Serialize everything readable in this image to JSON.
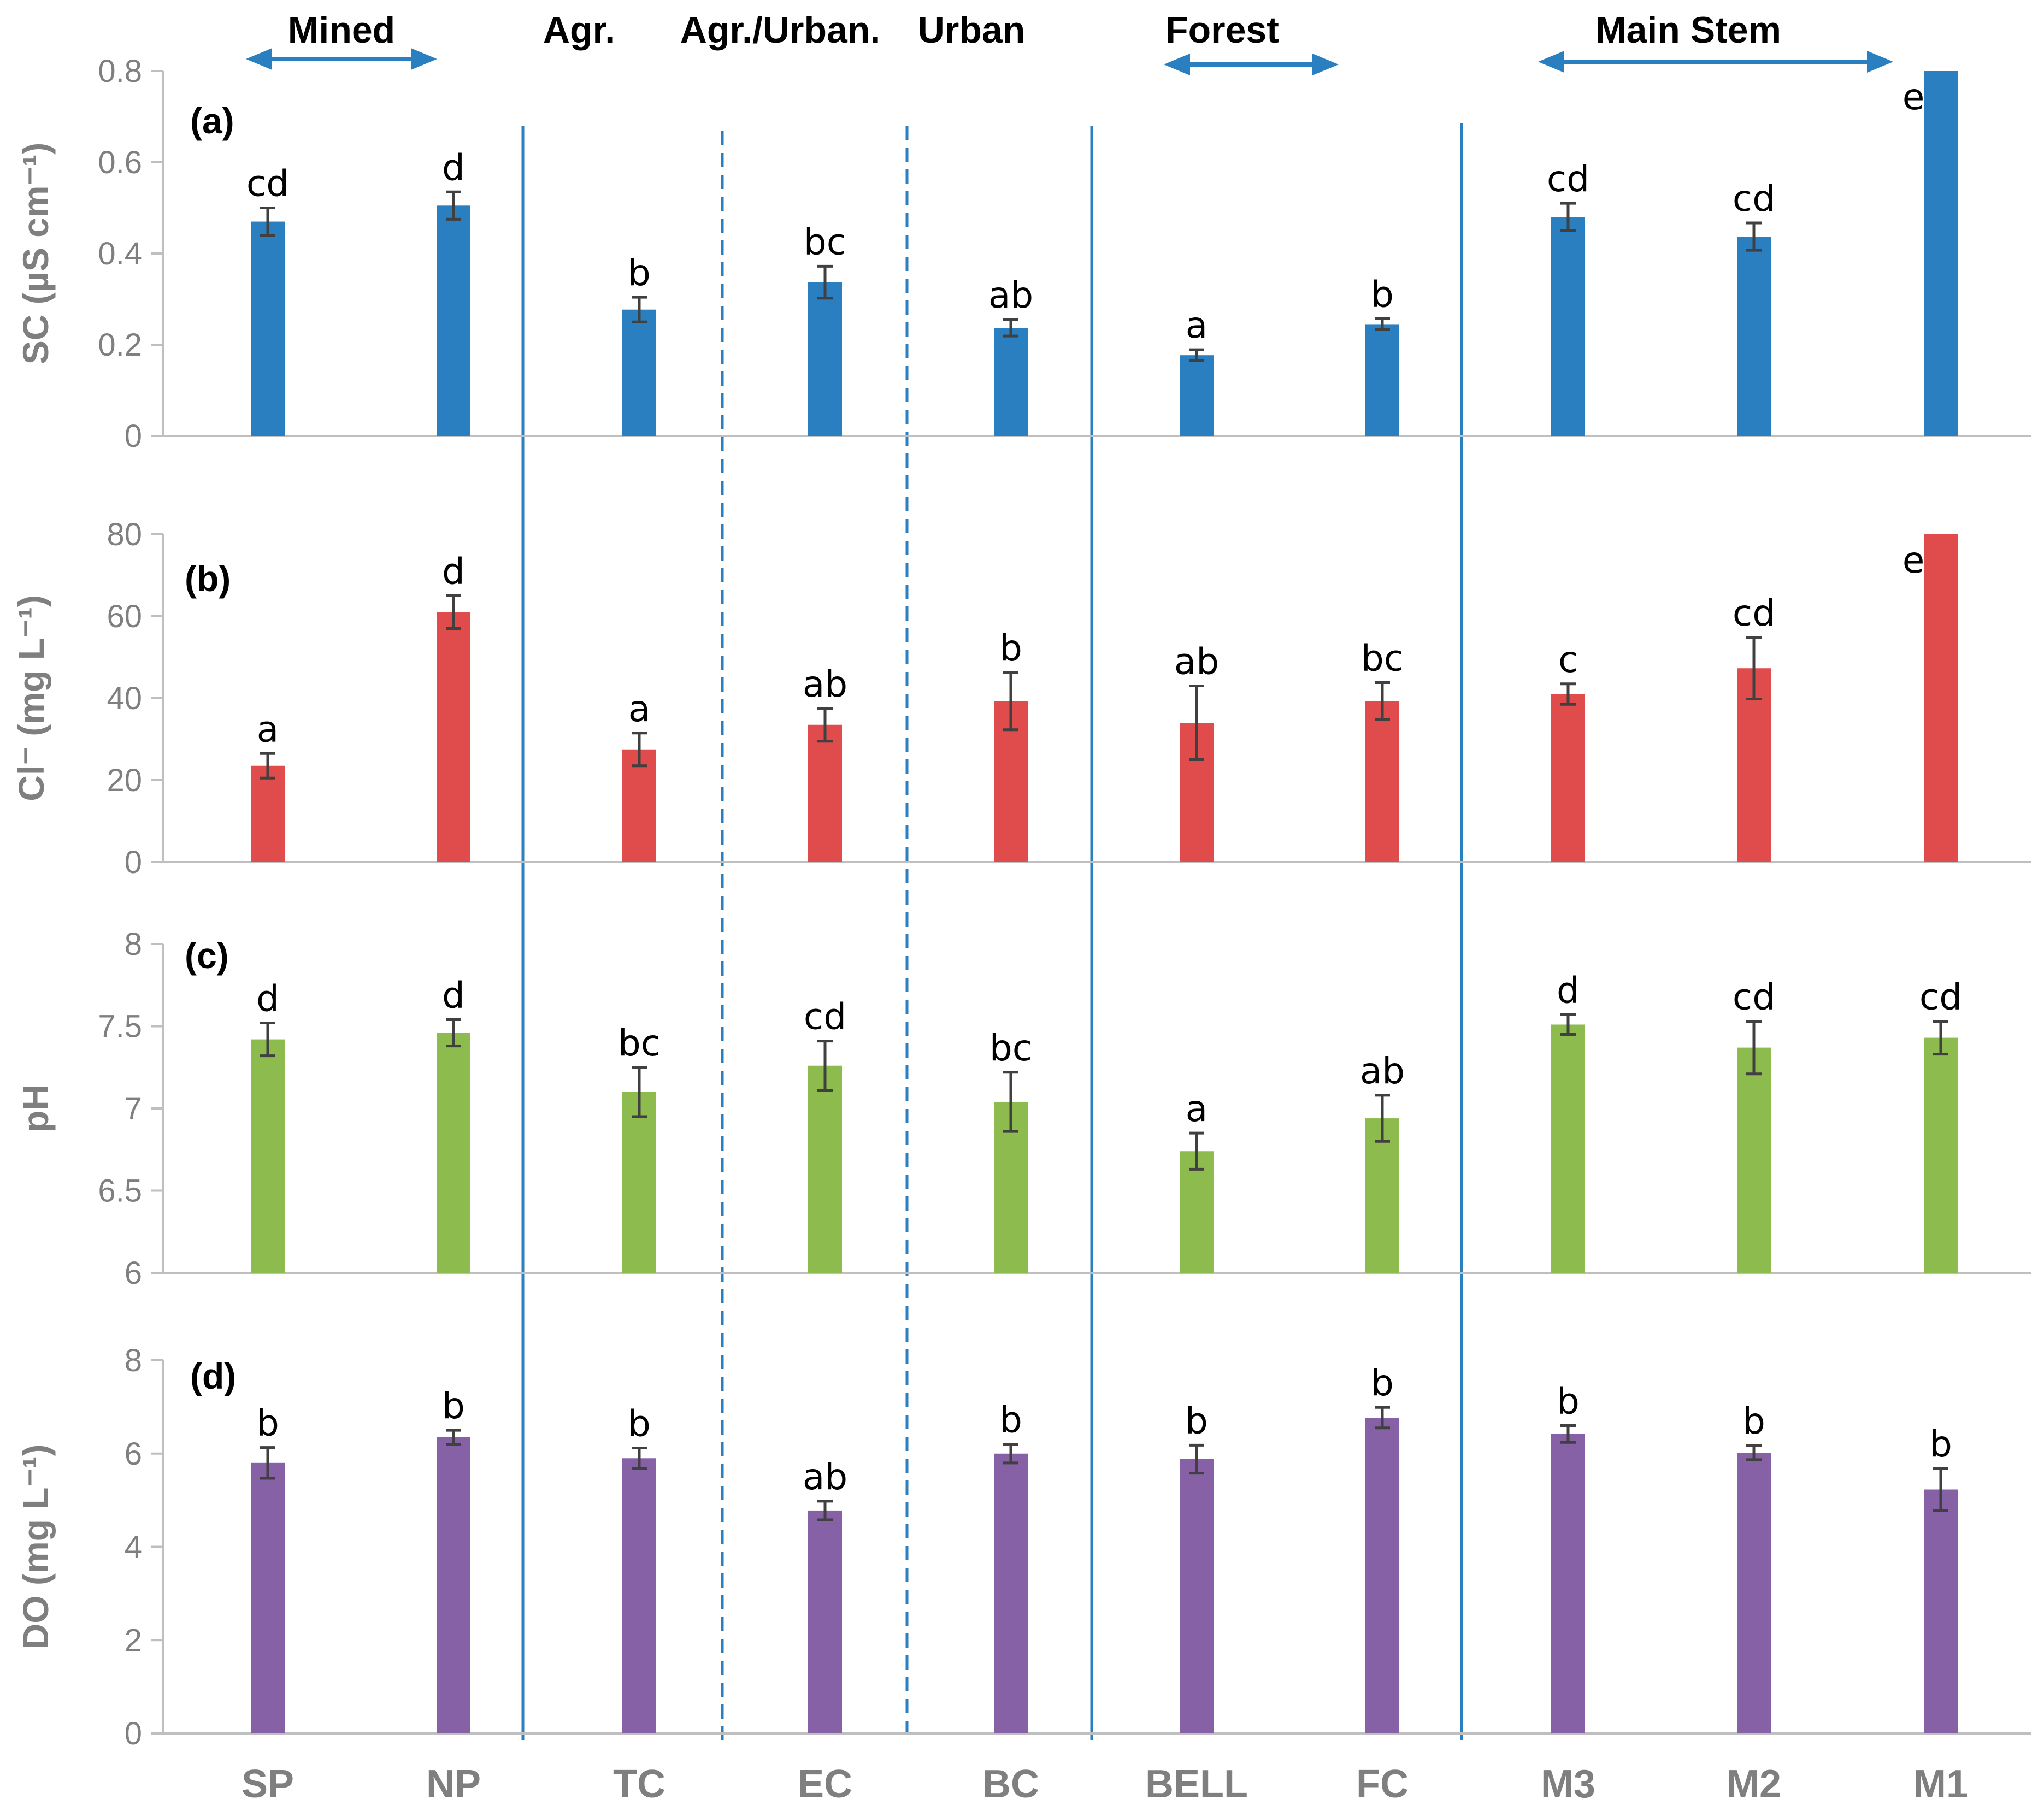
{
  "chart_data": {
    "type": "bar",
    "categories": [
      "SP",
      "NP",
      "TC",
      "EC",
      "BC",
      "BELL",
      "FC",
      "M3",
      "M2",
      "M1"
    ],
    "region_labels": [
      "Mined",
      "Agr.",
      "Agr./Urban.",
      "Urban",
      "Forest",
      "Main Stem"
    ],
    "colors": [
      "#2a7fc1",
      "#e04b4b",
      "#8dbb4e",
      "#8661a5"
    ],
    "panels": [
      {
        "label": "(a)",
        "ylabel": "SC (µS cm⁻¹)",
        "ylim": [
          0,
          0.8
        ],
        "yticks": [
          "0",
          "0.2",
          "0.4",
          "0.6",
          "0.8"
        ],
        "values": [
          0.47,
          0.505,
          0.277,
          0.337,
          0.237,
          0.177,
          0.245,
          0.48,
          0.437,
          0.8
        ],
        "errors": [
          0.03,
          0.03,
          0.027,
          0.035,
          0.018,
          0.012,
          0.012,
          0.03,
          0.03,
          0
        ],
        "letters": [
          "cd",
          "d",
          "b",
          "bc",
          "ab",
          "a",
          "b",
          "cd",
          "cd",
          "e"
        ]
      },
      {
        "label": "(b)",
        "ylabel": "Cl⁻ (mg L⁻¹)",
        "ylim": [
          0,
          80
        ],
        "yticks": [
          "0",
          "20",
          "40",
          "60",
          "80"
        ],
        "values": [
          23.5,
          61,
          27.5,
          33.5,
          39.3,
          34,
          39.3,
          41,
          47.3,
          80
        ],
        "errors": [
          3,
          4,
          4,
          4,
          7,
          9,
          4.5,
          2.5,
          7.5,
          0
        ],
        "letters": [
          "a",
          "d",
          "a",
          "ab",
          "b",
          "ab",
          "bc",
          "c",
          "cd",
          "e"
        ]
      },
      {
        "label": "(c)",
        "ylabel": "pH",
        "ylim": [
          6,
          8
        ],
        "yticks": [
          "6",
          "6.5",
          "7",
          "7.5",
          "8"
        ],
        "values": [
          7.42,
          7.46,
          7.1,
          7.26,
          7.04,
          6.74,
          6.94,
          7.51,
          7.37,
          7.43
        ],
        "errors": [
          0.1,
          0.08,
          0.15,
          0.15,
          0.18,
          0.11,
          0.14,
          0.06,
          0.16,
          0.1
        ],
        "letters": [
          "d",
          "d",
          "bc",
          "cd",
          "bc",
          "a",
          "ab",
          "d",
          "cd",
          "cd"
        ]
      },
      {
        "label": "(d)",
        "ylabel": "DO (mg L⁻¹)",
        "ylim": [
          0,
          8
        ],
        "yticks": [
          "0",
          "2",
          "4",
          "6",
          "8"
        ],
        "values": [
          5.8,
          6.35,
          5.9,
          4.78,
          6.0,
          5.88,
          6.77,
          6.42,
          6.02,
          5.23
        ],
        "errors": [
          0.33,
          0.15,
          0.22,
          0.2,
          0.2,
          0.3,
          0.22,
          0.18,
          0.15,
          0.45
        ],
        "letters": [
          "b",
          "b",
          "b",
          "ab",
          "b",
          "b",
          "b",
          "b",
          "b",
          "b"
        ]
      }
    ]
  }
}
